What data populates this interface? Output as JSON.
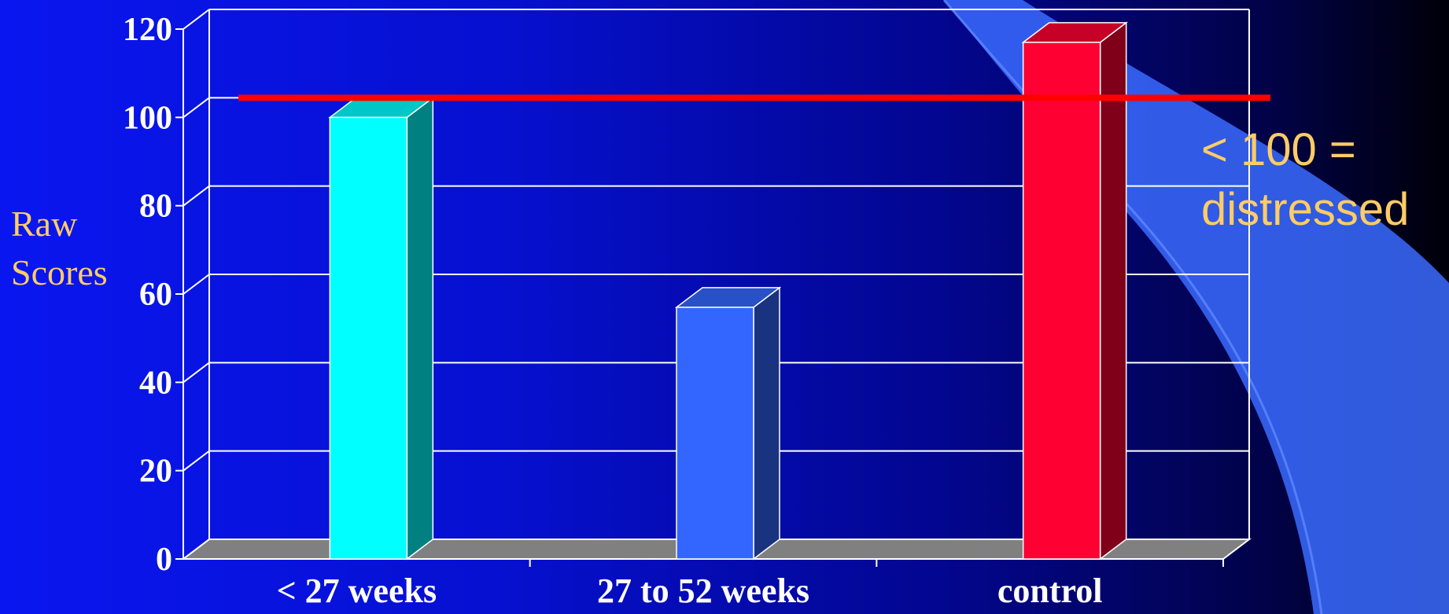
{
  "chart_data": {
    "type": "bar",
    "title": "",
    "xlabel": "",
    "ylabel": [
      "Raw",
      "Scores"
    ],
    "categories": [
      "< 27 weeks",
      "27 to 52 weeks",
      "control"
    ],
    "values": [
      100,
      57,
      117
    ],
    "ylim": [
      0,
      120
    ],
    "yticks": [
      0,
      20,
      40,
      60,
      80,
      100,
      120
    ],
    "grid": true,
    "bar_colors": [
      "#00ffff",
      "#3366ff",
      "#ff0033"
    ],
    "reference_line": {
      "value": 100,
      "color": "#ff0000"
    },
    "annotation": [
      "< 100 =",
      "distressed"
    ]
  },
  "colors": {
    "accent": "#ffcc66",
    "grid": "#ffffff",
    "floor": "#808080"
  }
}
